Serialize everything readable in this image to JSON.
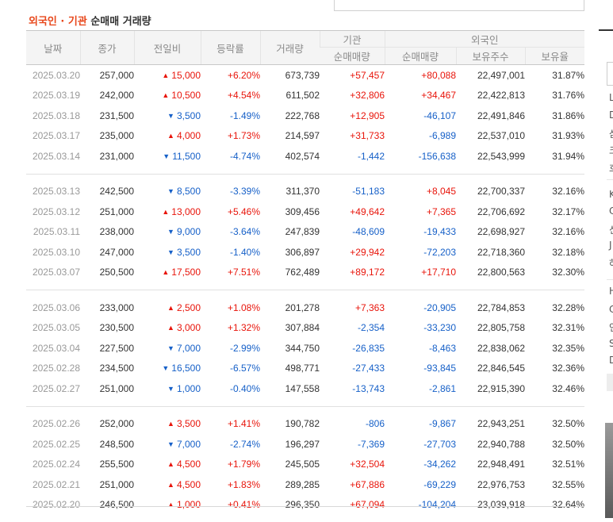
{
  "title": {
    "highlight": "외국인 · 기관",
    "rest": "순매매 거래량"
  },
  "headers": {
    "date": "날짜",
    "close": "종가",
    "change": "전일비",
    "rate": "등락률",
    "volume": "거래량",
    "institution": "기관",
    "foreign": "외국인",
    "inst_net": "순매매량",
    "foreign_net": "순매매량",
    "foreign_shares": "보유주수",
    "foreign_ratio": "보유율"
  },
  "groups": [
    [
      {
        "date": "2025.03.20",
        "close": "257,000",
        "dir": "up",
        "change": "15,000",
        "rate": "+6.20%",
        "volume": "673,739",
        "inst": "+57,457",
        "frgn": "+80,088",
        "shares": "22,497,001",
        "ratio": "31.87%"
      },
      {
        "date": "2025.03.19",
        "close": "242,000",
        "dir": "up",
        "change": "10,500",
        "rate": "+4.54%",
        "volume": "611,502",
        "inst": "+32,806",
        "frgn": "+34,467",
        "shares": "22,422,813",
        "ratio": "31.76%"
      },
      {
        "date": "2025.03.18",
        "close": "231,500",
        "dir": "dn",
        "change": "3,500",
        "rate": "-1.49%",
        "volume": "222,768",
        "inst": "+12,905",
        "frgn": "-46,107",
        "shares": "22,491,846",
        "ratio": "31.86%"
      },
      {
        "date": "2025.03.17",
        "close": "235,000",
        "dir": "up",
        "change": "4,000",
        "rate": "+1.73%",
        "volume": "214,597",
        "inst": "+31,733",
        "frgn": "-6,989",
        "shares": "22,537,010",
        "ratio": "31.93%"
      },
      {
        "date": "2025.03.14",
        "close": "231,000",
        "dir": "dn",
        "change": "11,500",
        "rate": "-4.74%",
        "volume": "402,574",
        "inst": "-1,442",
        "frgn": "-156,638",
        "shares": "22,543,999",
        "ratio": "31.94%"
      }
    ],
    [
      {
        "date": "2025.03.13",
        "close": "242,500",
        "dir": "dn",
        "change": "8,500",
        "rate": "-3.39%",
        "volume": "311,370",
        "inst": "-51,183",
        "frgn": "+8,045",
        "shares": "22,700,337",
        "ratio": "32.16%"
      },
      {
        "date": "2025.03.12",
        "close": "251,000",
        "dir": "up",
        "change": "13,000",
        "rate": "+5.46%",
        "volume": "309,456",
        "inst": "+49,642",
        "frgn": "+7,365",
        "shares": "22,706,692",
        "ratio": "32.17%"
      },
      {
        "date": "2025.03.11",
        "close": "238,000",
        "dir": "dn",
        "change": "9,000",
        "rate": "-3.64%",
        "volume": "247,839",
        "inst": "-48,609",
        "frgn": "-19,433",
        "shares": "22,698,927",
        "ratio": "32.16%"
      },
      {
        "date": "2025.03.10",
        "close": "247,000",
        "dir": "dn",
        "change": "3,500",
        "rate": "-1.40%",
        "volume": "306,897",
        "inst": "+29,942",
        "frgn": "-72,203",
        "shares": "22,718,360",
        "ratio": "32.18%"
      },
      {
        "date": "2025.03.07",
        "close": "250,500",
        "dir": "up",
        "change": "17,500",
        "rate": "+7.51%",
        "volume": "762,489",
        "inst": "+89,172",
        "frgn": "+17,710",
        "shares": "22,800,563",
        "ratio": "32.30%"
      }
    ],
    [
      {
        "date": "2025.03.06",
        "close": "233,000",
        "dir": "up",
        "change": "2,500",
        "rate": "+1.08%",
        "volume": "201,278",
        "inst": "+7,363",
        "frgn": "-20,905",
        "shares": "22,784,853",
        "ratio": "32.28%"
      },
      {
        "date": "2025.03.05",
        "close": "230,500",
        "dir": "up",
        "change": "3,000",
        "rate": "+1.32%",
        "volume": "307,884",
        "inst": "-2,354",
        "frgn": "-33,230",
        "shares": "22,805,758",
        "ratio": "32.31%"
      },
      {
        "date": "2025.03.04",
        "close": "227,500",
        "dir": "dn",
        "change": "7,000",
        "rate": "-2.99%",
        "volume": "344,750",
        "inst": "-26,835",
        "frgn": "-8,463",
        "shares": "22,838,062",
        "ratio": "32.35%"
      },
      {
        "date": "2025.02.28",
        "close": "234,500",
        "dir": "dn",
        "change": "16,500",
        "rate": "-6.57%",
        "volume": "498,771",
        "inst": "-27,433",
        "frgn": "-93,845",
        "shares": "22,846,545",
        "ratio": "32.36%"
      },
      {
        "date": "2025.02.27",
        "close": "251,000",
        "dir": "dn",
        "change": "1,000",
        "rate": "-0.40%",
        "volume": "147,558",
        "inst": "-13,743",
        "frgn": "-2,861",
        "shares": "22,915,390",
        "ratio": "32.46%"
      }
    ],
    [
      {
        "date": "2025.02.26",
        "close": "252,000",
        "dir": "up",
        "change": "3,500",
        "rate": "+1.41%",
        "volume": "190,782",
        "inst": "-806",
        "frgn": "-9,867",
        "shares": "22,943,251",
        "ratio": "32.50%"
      },
      {
        "date": "2025.02.25",
        "close": "248,500",
        "dir": "dn",
        "change": "7,000",
        "rate": "-2.74%",
        "volume": "196,297",
        "inst": "-7,369",
        "frgn": "-27,703",
        "shares": "22,940,788",
        "ratio": "32.50%"
      },
      {
        "date": "2025.02.24",
        "close": "255,500",
        "dir": "up",
        "change": "4,500",
        "rate": "+1.79%",
        "volume": "245,505",
        "inst": "+32,504",
        "frgn": "-34,262",
        "shares": "22,948,491",
        "ratio": "32.51%"
      },
      {
        "date": "2025.02.21",
        "close": "251,000",
        "dir": "up",
        "change": "4,500",
        "rate": "+1.83%",
        "volume": "289,285",
        "inst": "+67,886",
        "frgn": "-69,229",
        "shares": "22,976,753",
        "ratio": "32.55%"
      },
      {
        "date": "2025.02.20",
        "close": "246,500",
        "dir": "up",
        "change": "1,000",
        "rate": "+0.41%",
        "volume": "296,350",
        "inst": "+67,094",
        "frgn": "-104,204",
        "shares": "23,039,918",
        "ratio": "32.64%"
      }
    ]
  ],
  "right_panel": {
    "letters": [
      "L",
      "D",
      "삼",
      "크",
      "호",
      "K",
      "C",
      "신",
      "J",
      "하",
      "H",
      "C",
      "인",
      "S",
      "D"
    ]
  },
  "colors": {
    "up": "#e8140a",
    "down": "#1660c8",
    "title_accent": "#e8481c"
  }
}
